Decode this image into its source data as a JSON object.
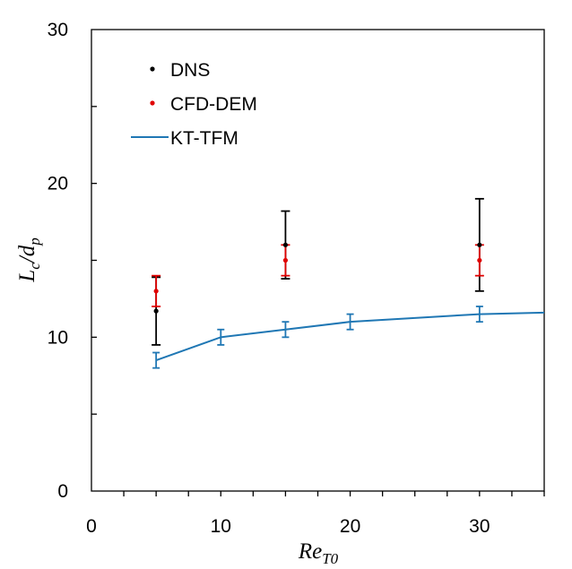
{
  "chart_data": {
    "type": "scatter",
    "title": "",
    "xlabel": {
      "main": "Re",
      "sub": "T0"
    },
    "ylabel": {
      "parts": [
        {
          "main": "L",
          "sub": "c"
        },
        {
          "main": "/d",
          "sub": "p"
        }
      ]
    },
    "xlim": [
      0,
      35
    ],
    "ylim": [
      0,
      30
    ],
    "x_ticks": [
      0,
      10,
      20,
      30
    ],
    "y_ticks": [
      0,
      10,
      20,
      30
    ],
    "x_minor_step": 2.5,
    "y_minor_step": 5,
    "grid": false,
    "legend_position": "top-left",
    "series": [
      {
        "name": "DNS",
        "kind": "points",
        "color": "#000000",
        "points": [
          {
            "x": 5,
            "y": 11.7,
            "err_low": 9.5,
            "err_high": 13.9
          },
          {
            "x": 15,
            "y": 16.0,
            "err_low": 13.8,
            "err_high": 18.2
          },
          {
            "x": 30,
            "y": 16.0,
            "err_low": 13.0,
            "err_high": 19.0
          }
        ]
      },
      {
        "name": "CFD-DEM",
        "kind": "points",
        "color": "#e00000",
        "points": [
          {
            "x": 5,
            "y": 13.0,
            "err_low": 12.0,
            "err_high": 14.0
          },
          {
            "x": 15,
            "y": 15.0,
            "err_low": 14.0,
            "err_high": 16.0
          },
          {
            "x": 30,
            "y": 15.0,
            "err_low": 14.0,
            "err_high": 16.0
          }
        ]
      },
      {
        "name": "KT-TFM",
        "kind": "line",
        "color": "#1f77b4",
        "points": [
          {
            "x": 5,
            "y": 8.5,
            "err_low": 8.0,
            "err_high": 9.0
          },
          {
            "x": 10,
            "y": 10.0,
            "err_low": 9.5,
            "err_high": 10.5
          },
          {
            "x": 15,
            "y": 10.5,
            "err_low": 10.0,
            "err_high": 11.0
          },
          {
            "x": 20,
            "y": 11.0,
            "err_low": 10.5,
            "err_high": 11.5
          },
          {
            "x": 30,
            "y": 11.5,
            "err_low": 11.0,
            "err_high": 12.0
          },
          {
            "x": 35,
            "y": 11.6
          }
        ]
      }
    ]
  }
}
